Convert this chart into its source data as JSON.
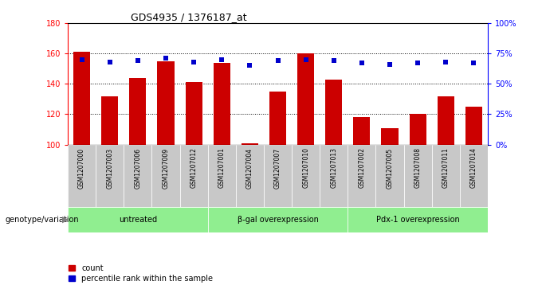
{
  "title": "GDS4935 / 1376187_at",
  "samples": [
    "GSM1207000",
    "GSM1207003",
    "GSM1207006",
    "GSM1207009",
    "GSM1207012",
    "GSM1207001",
    "GSM1207004",
    "GSM1207007",
    "GSM1207010",
    "GSM1207013",
    "GSM1207002",
    "GSM1207005",
    "GSM1207008",
    "GSM1207011",
    "GSM1207014"
  ],
  "counts": [
    161,
    132,
    144,
    155,
    141,
    154,
    101,
    135,
    160,
    143,
    118,
    111,
    120,
    132,
    125
  ],
  "percentiles": [
    70,
    68,
    69,
    71,
    68,
    70,
    65,
    69,
    70,
    69,
    67,
    66,
    67,
    68,
    67
  ],
  "groups": [
    {
      "label": "untreated",
      "start": 0,
      "end": 5
    },
    {
      "label": "β-gal overexpression",
      "start": 5,
      "end": 10
    },
    {
      "label": "Pdx-1 overexpression",
      "start": 10,
      "end": 15
    }
  ],
  "ylim_left": [
    100,
    180
  ],
  "ylim_right": [
    0,
    100
  ],
  "yticks_left": [
    100,
    120,
    140,
    160,
    180
  ],
  "yticks_right": [
    0,
    25,
    50,
    75,
    100
  ],
  "ytick_labels_right": [
    "0%",
    "25%",
    "50%",
    "75%",
    "100%"
  ],
  "bar_color": "#cc0000",
  "dot_color": "#0000cc",
  "bar_width": 0.6,
  "group_bg_color": "#90ee90",
  "sample_bg_color": "#c8c8c8",
  "genotype_label": "genotype/variation",
  "legend_count_label": "count",
  "legend_percentile_label": "percentile rank within the sample"
}
